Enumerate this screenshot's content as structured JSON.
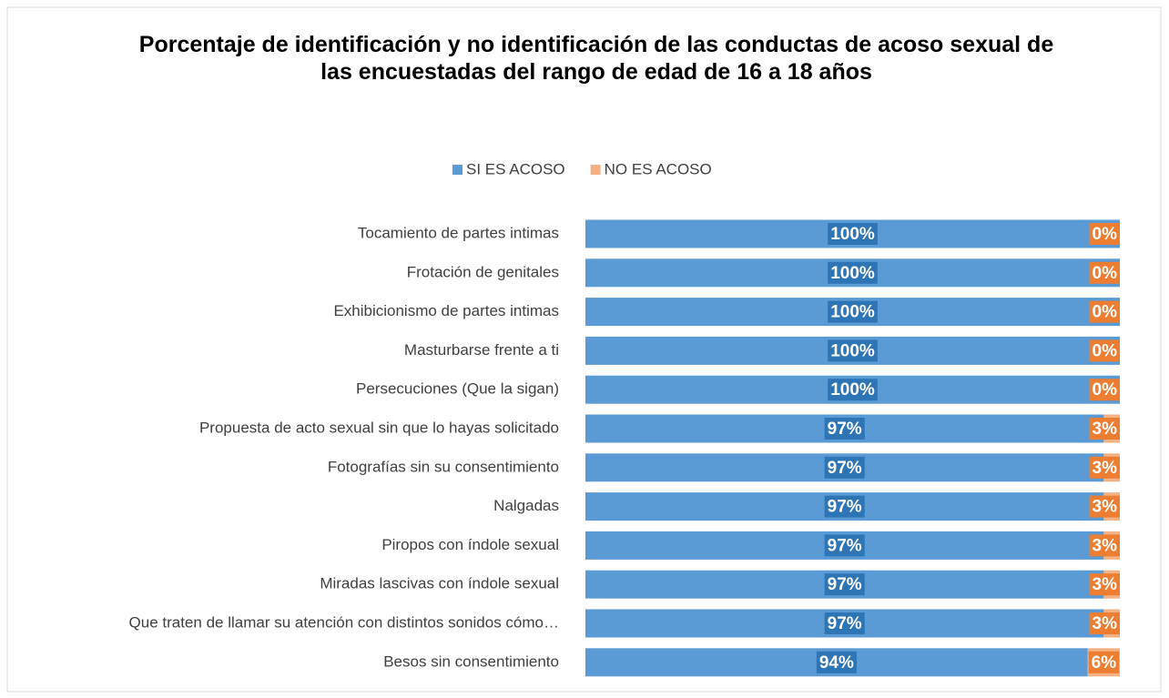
{
  "chart_data": {
    "type": "stacked-bar-horizontal",
    "title": "Porcentaje de identificación y no identificación de las conductas de acoso sexual de las encuestadas del rango de edad de 16 a 18 años",
    "categories": [
      "Tocamiento de partes intimas",
      "Frotación de genitales",
      "Exhibicionismo de partes intimas",
      "Masturbarse frente a ti",
      "Persecuciones (Que la sigan)",
      "Propuesta de acto sexual sin que lo hayas solicitado",
      "Fotografías sin su consentimiento",
      "Nalgadas",
      "Piropos con índole sexual",
      "Miradas lascivas con índole sexual",
      "Que traten de llamar su atención con distintos sonidos cómo…",
      "Besos sin consentimiento"
    ],
    "series": [
      {
        "name": "SI ES ACOSO",
        "color": "#5b9bd5",
        "label_color": "#2e75b6",
        "values": [
          100,
          100,
          100,
          100,
          100,
          97,
          97,
          97,
          97,
          97,
          97,
          94
        ],
        "value_labels": [
          "100%",
          "100%",
          "100%",
          "100%",
          "100%",
          "97%",
          "97%",
          "97%",
          "97%",
          "97%",
          "97%",
          "94%"
        ]
      },
      {
        "name": "NO ES ACOSO",
        "color": "#f4b183",
        "label_color": "#ed7d31",
        "values": [
          0,
          0,
          0,
          0,
          0,
          3,
          3,
          3,
          3,
          3,
          3,
          6
        ],
        "value_labels": [
          "0%",
          "0%",
          "0%",
          "0%",
          "0%",
          "3%",
          "3%",
          "3%",
          "3%",
          "3%",
          "3%",
          "6%"
        ]
      }
    ],
    "xlim": [
      0,
      100
    ],
    "legend": "top"
  }
}
